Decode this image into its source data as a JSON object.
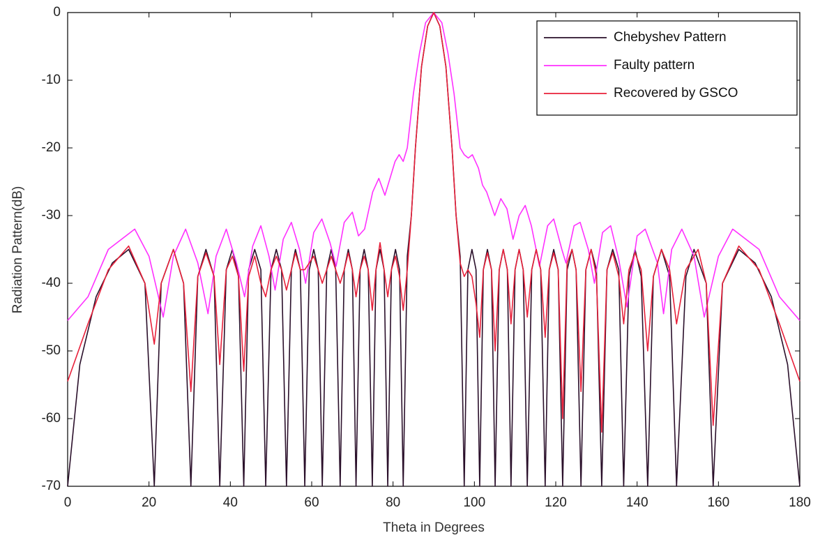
{
  "chart_data": {
    "type": "line",
    "xlabel": "Theta in Degrees",
    "ylabel": "Radiation Pattern(dB)",
    "xlim": [
      0,
      180
    ],
    "xticks": [
      0,
      20,
      40,
      60,
      80,
      100,
      120,
      140,
      160,
      180
    ],
    "ylim": [
      -70,
      0
    ],
    "yticks": [
      -70,
      -60,
      -50,
      -40,
      -30,
      -20,
      -10,
      0
    ],
    "grid": false,
    "legend": "upper right",
    "series": [
      {
        "name": "Chebyshev Pattern",
        "color": "#2a0f2a",
        "x": [
          0,
          3,
          7,
          11,
          15,
          19,
          21.3,
          23,
          26,
          28.5,
          30.3,
          32,
          34,
          36,
          37.4,
          39,
          40.5,
          42,
          43.3,
          44.5,
          46,
          47.5,
          48.7,
          50,
          51.3,
          52.6,
          53.8,
          55,
          56,
          57.2,
          58.3,
          59.4,
          60.5,
          61.6,
          62.6,
          63.7,
          64.8,
          65.9,
          67,
          68,
          69,
          70,
          70.9,
          71.9,
          72.9,
          73.9,
          74.9,
          75.8,
          76.8,
          77.8,
          78.7,
          79.6,
          80.6,
          81.6,
          82.5,
          83.5,
          84.5,
          85.5,
          87,
          88.5,
          90,
          91.5,
          93,
          94.5,
          95.5,
          96.5,
          97.5,
          98.4,
          99.4,
          100.4,
          101.3,
          102.2,
          103.2,
          104.2,
          105.1,
          106.1,
          107.1,
          108.1,
          109,
          110,
          111,
          112,
          113,
          114.1,
          115.2,
          116.3,
          117.4,
          118.4,
          119.5,
          120.6,
          121.7,
          122.8,
          124,
          125,
          126.2,
          127.4,
          128.7,
          130,
          131.3,
          132.6,
          134,
          135.5,
          136.7,
          138,
          139.5,
          141,
          142.6,
          144,
          146,
          148,
          149.7,
          152,
          154,
          157,
          158.7,
          161,
          165,
          169,
          173,
          177,
          180
        ],
        "values": [
          -70,
          -52,
          -42,
          -37,
          -35,
          -40,
          -70,
          -40,
          -35,
          -40,
          -70,
          -39,
          -35,
          -39,
          -70,
          -38,
          -35,
          -39,
          -70,
          -38,
          -35,
          -38,
          -70,
          -38,
          -35,
          -38,
          -70,
          -38,
          -35,
          -38,
          -70,
          -38,
          -35,
          -38,
          -70,
          -38,
          -35,
          -38,
          -70,
          -38,
          -35,
          -38,
          -70,
          -38,
          -35,
          -38,
          -70,
          -38,
          -35,
          -38,
          -70,
          -38,
          -35,
          -38,
          -70,
          -36,
          -30,
          -20,
          -8,
          -2,
          0,
          -2,
          -8,
          -20,
          -30,
          -36,
          -70,
          -38,
          -35,
          -38,
          -70,
          -38,
          -35,
          -38,
          -70,
          -38,
          -35,
          -38,
          -70,
          -38,
          -35,
          -38,
          -70,
          -38,
          -35,
          -38,
          -70,
          -38,
          -35,
          -38,
          -70,
          -38,
          -35,
          -38,
          -70,
          -38,
          -35,
          -38,
          -70,
          -38,
          -35,
          -38,
          -70,
          -39,
          -35,
          -39,
          -70,
          -39,
          -35,
          -39,
          -70,
          -39,
          -35,
          -40,
          -70,
          -40,
          -35,
          -37,
          -42,
          -52,
          -70
        ]
      },
      {
        "name": "Faulty pattern",
        "color": "#ff30ff",
        "x": [
          0,
          5,
          10,
          16.5,
          20,
          23.5,
          26,
          29,
          32,
          34.5,
          36.5,
          39,
          41.5,
          43.5,
          45.5,
          47.5,
          49.5,
          51,
          53,
          55,
          57,
          58.5,
          60.5,
          62.5,
          64.5,
          66,
          68,
          70,
          71.5,
          73,
          75,
          76.5,
          78,
          79,
          80.5,
          81.5,
          82.5,
          83.5,
          85,
          86.5,
          88,
          90,
          92,
          93.5,
          95,
          96.5,
          97.5,
          98.5,
          99.5,
          101,
          102,
          103,
          105,
          106.5,
          108,
          109.5,
          111,
          112.5,
          114,
          116,
          118,
          119.5,
          121.5,
          122.5,
          124.5,
          126,
          128,
          129.5,
          131.5,
          133.5,
          135.5,
          137.5,
          140,
          142,
          145,
          146.5,
          148.5,
          151,
          154,
          156.5,
          160,
          163.5,
          170,
          175,
          180
        ],
        "values": [
          -45.5,
          -42,
          -35,
          -32,
          -36,
          -45,
          -36,
          -32,
          -37,
          -44.5,
          -36,
          -32,
          -37,
          -42,
          -34.5,
          -31.5,
          -36,
          -41,
          -33.5,
          -31,
          -35,
          -40,
          -32.5,
          -30.5,
          -34,
          -37.5,
          -31,
          -29.5,
          -33,
          -32,
          -26.5,
          -24.5,
          -27,
          -25,
          -22,
          -21,
          -22,
          -20,
          -12,
          -6,
          -1.5,
          0,
          -1.5,
          -6,
          -12,
          -20,
          -21,
          -21.5,
          -21,
          -23,
          -25.5,
          -26.5,
          -30,
          -27.5,
          -29,
          -33.5,
          -30,
          -28.5,
          -31.5,
          -37.5,
          -31.5,
          -30.5,
          -35,
          -37,
          -31.5,
          -31,
          -35,
          -40,
          -32.5,
          -31.5,
          -36.5,
          -43.5,
          -33,
          -32,
          -37,
          -44.5,
          -35,
          -32,
          -36,
          -45,
          -36,
          -32,
          -35,
          -42,
          -45.5
        ]
      },
      {
        "name": "Recovered by GSCO",
        "color": "#e8203a",
        "x": [
          0,
          5,
          10,
          15,
          19,
          21.3,
          23,
          26,
          28.5,
          30.3,
          32,
          34,
          36,
          37.4,
          39,
          40.5,
          42,
          43.3,
          44.5,
          46,
          47.5,
          48.7,
          50,
          51.3,
          52.6,
          53.8,
          55,
          56,
          57.2,
          58.3,
          59.4,
          60.5,
          61.6,
          62.6,
          63.7,
          64.8,
          65.9,
          67,
          68,
          69,
          70,
          70.9,
          71.9,
          72.9,
          73.9,
          74.9,
          75.8,
          76.8,
          77.8,
          78.7,
          79.6,
          80.6,
          81.6,
          82.5,
          83.5,
          84.5,
          85.5,
          87,
          88.5,
          90,
          91.5,
          93,
          94.5,
          95.5,
          96.5,
          97.5,
          98.4,
          99.4,
          100.4,
          101.3,
          102.2,
          103.2,
          104.2,
          105.1,
          106.1,
          107.1,
          108.1,
          109,
          110,
          111,
          112,
          113,
          114.1,
          115.2,
          116.3,
          117.4,
          118.4,
          119.5,
          120.6,
          121.7,
          122.8,
          124,
          125,
          126.2,
          127.4,
          128.7,
          130,
          131.3,
          132.6,
          134,
          135.5,
          136.7,
          138,
          139.5,
          141,
          142.6,
          144,
          146,
          148,
          149.7,
          152,
          155,
          157,
          158.7,
          161,
          165,
          170,
          175,
          180
        ],
        "values": [
          -54.5,
          -46,
          -38,
          -34.5,
          -40,
          -49,
          -40,
          -35,
          -40,
          -56,
          -39,
          -35.5,
          -39,
          -52,
          -38,
          -36,
          -39,
          -53,
          -39,
          -36,
          -40,
          -42,
          -38,
          -36,
          -38,
          -41,
          -38,
          -35.5,
          -38,
          -38,
          -37,
          -36,
          -38,
          -40,
          -38,
          -36,
          -38,
          -40,
          -38,
          -35.5,
          -38,
          -42,
          -38,
          -36,
          -38,
          -44,
          -38,
          -34,
          -38,
          -42,
          -38,
          -36,
          -39,
          -44,
          -38,
          -30,
          -20,
          -8,
          -2,
          0,
          -2,
          -8,
          -20,
          -30,
          -37,
          -39,
          -38,
          -39,
          -43,
          -48,
          -38,
          -35.5,
          -38,
          -50,
          -38,
          -35,
          -38,
          -46,
          -38,
          -35,
          -38,
          -45,
          -38,
          -35,
          -38,
          -48,
          -38,
          -35.5,
          -38,
          -60,
          -37,
          -35,
          -38,
          -56,
          -38,
          -35,
          -39,
          -62,
          -38,
          -35.5,
          -39,
          -46,
          -38,
          -35.5,
          -38,
          -50,
          -39,
          -35,
          -38,
          -46,
          -38,
          -35,
          -40,
          -61,
          -40,
          -34.5,
          -38,
          -46,
          -54.5
        ]
      }
    ]
  }
}
